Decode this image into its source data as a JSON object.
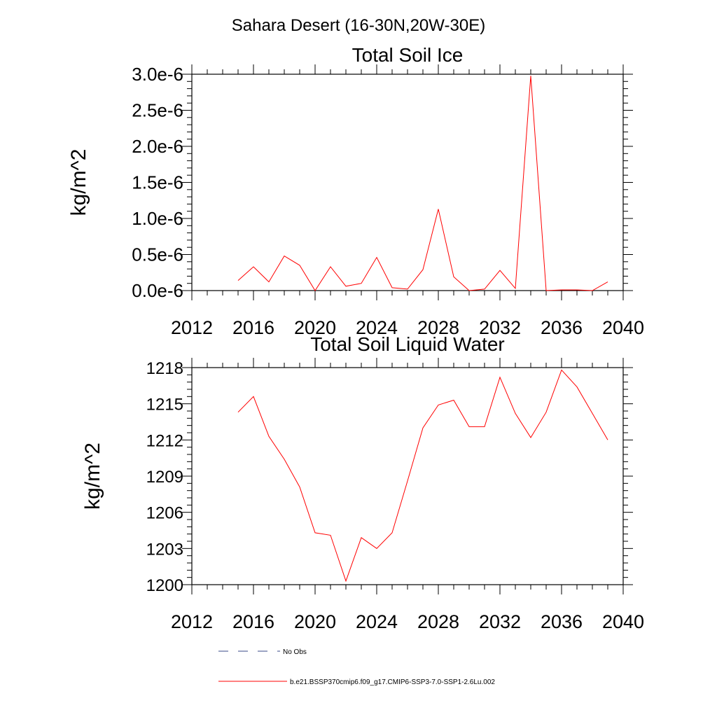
{
  "page": {
    "suptitle": "Sahara Desert (16-30N,20W-30E)"
  },
  "chart_data": [
    {
      "type": "line",
      "title": "Total Soil Ice",
      "xlabel": "",
      "ylabel": "kg/m^2",
      "xlim": [
        2012,
        2040
      ],
      "ylim": [
        0,
        3e-06
      ],
      "xticks": [
        2012,
        2016,
        2020,
        2024,
        2028,
        2032,
        2036,
        2040
      ],
      "xtick_labels": [
        "2012",
        "2016",
        "2020",
        "2024",
        "2028",
        "2032",
        "2036",
        "2040"
      ],
      "yticks": [
        0,
        5e-07,
        1e-06,
        1.5e-06,
        2e-06,
        2.5e-06,
        3e-06
      ],
      "ytick_labels": [
        "0.0e-6",
        "0.5e-6",
        "1.0e-6",
        "1.5e-6",
        "2.0e-6",
        "2.5e-6",
        "3.0e-6"
      ],
      "grid": false,
      "series": [
        {
          "color": "#ff0000",
          "x": [
            2015,
            2016,
            2017,
            2018,
            2019,
            2020,
            2021,
            2022,
            2023,
            2024,
            2025,
            2026,
            2027,
            2028,
            2029,
            2030,
            2031,
            2032,
            2033,
            2034,
            2035,
            2036,
            2037,
            2038,
            2039
          ],
          "y": [
            1.4e-07,
            3.3e-07,
            1.2e-07,
            4.8e-07,
            3.5e-07,
            0.0,
            3.3e-07,
            6e-08,
            1e-07,
            4.6e-07,
            4e-08,
            2e-08,
            2.9e-07,
            1.13e-06,
            1.9e-07,
            0.0,
            2e-08,
            2.8e-07,
            3e-08,
            2.98e-06,
            0.0,
            1e-08,
            1e-08,
            0.0,
            1.2e-07
          ]
        }
      ]
    },
    {
      "type": "line",
      "title": "Total Soil Liquid Water",
      "xlabel": "",
      "ylabel": "kg/m^2",
      "xlim": [
        2012,
        2040
      ],
      "ylim": [
        1200,
        1218
      ],
      "xticks": [
        2012,
        2016,
        2020,
        2024,
        2028,
        2032,
        2036,
        2040
      ],
      "xtick_labels": [
        "2012",
        "2016",
        "2020",
        "2024",
        "2028",
        "2032",
        "2036",
        "2040"
      ],
      "yticks": [
        1200,
        1203,
        1206,
        1209,
        1212,
        1215,
        1218
      ],
      "ytick_labels": [
        "1200",
        "1203",
        "1206",
        "1209",
        "1212",
        "1215",
        "1218"
      ],
      "grid": false,
      "series": [
        {
          "color": "#ff0000",
          "x": [
            2015,
            2016,
            2017,
            2018,
            2019,
            2020,
            2021,
            2022,
            2023,
            2024,
            2025,
            2026,
            2027,
            2028,
            2029,
            2030,
            2031,
            2032,
            2033,
            2034,
            2035,
            2036,
            2037,
            2038,
            2039
          ],
          "y": [
            1214.3,
            1215.6,
            1212.3,
            1210.4,
            1208.1,
            1204.3,
            1204.1,
            1200.3,
            1203.9,
            1203.0,
            1204.3,
            1208.6,
            1213.0,
            1214.9,
            1215.3,
            1213.1,
            1213.1,
            1217.2,
            1214.2,
            1212.2,
            1214.3,
            1217.8,
            1216.4,
            1214.2,
            1212.0
          ]
        }
      ]
    }
  ],
  "legend": {
    "placement": "bottom-left",
    "entries": [
      {
        "label": "No Obs",
        "color": "#3a4a8a",
        "style": "dashed"
      },
      {
        "label": "b.e21.BSSP370cmip6.f09_g17.CMIP6-SSP3-7.0-SSP1-2.6Lu.002",
        "color": "#ff0000",
        "style": "solid"
      }
    ]
  }
}
